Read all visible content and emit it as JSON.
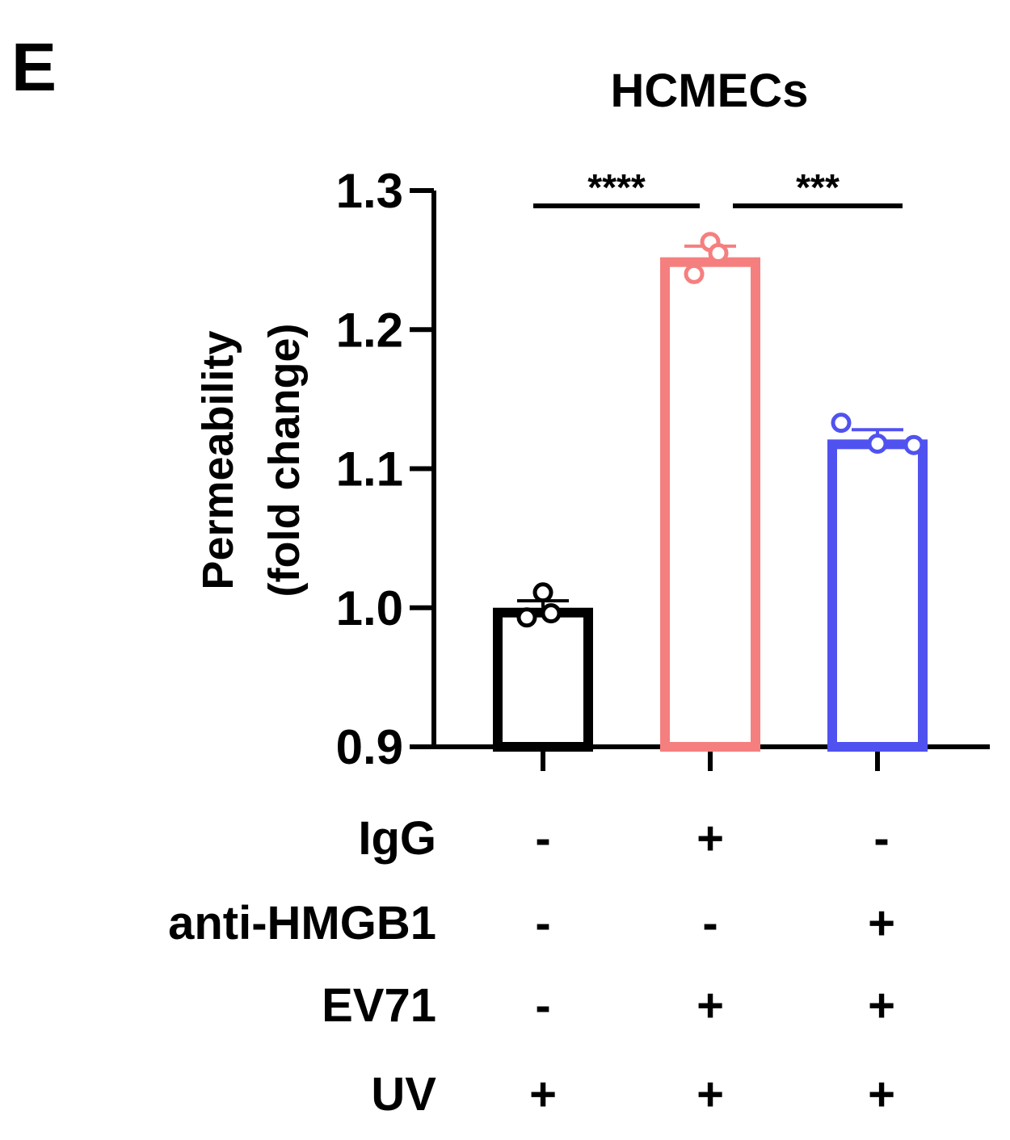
{
  "chart_data": {
    "type": "bar",
    "panel_label": "E",
    "title": "HCMECs",
    "ylabel_line1": "Permeability",
    "ylabel_line2": "(fold change)",
    "ylim": [
      0.9,
      1.3
    ],
    "yticks": [
      "0.9",
      "1.0",
      "1.1",
      "1.2",
      "1.3"
    ],
    "grid": false,
    "legend": "none",
    "bars": [
      {
        "mean": 1.0,
        "sd": 0.005,
        "points": [
          1.011,
          0.996,
          0.993
        ],
        "color": "#000000"
      },
      {
        "mean": 1.252,
        "sd": 0.008,
        "points": [
          1.263,
          1.255,
          1.24
        ],
        "color": "#f57f7f"
      },
      {
        "mean": 1.121,
        "sd": 0.007,
        "points": [
          1.133,
          1.118,
          1.117
        ],
        "color": "#5052f0"
      }
    ],
    "significance": [
      {
        "label": "****",
        "from": 0,
        "to": 1
      },
      {
        "label": "***",
        "from": 1,
        "to": 2
      }
    ],
    "conditions": [
      {
        "name": "IgG",
        "values": [
          "-",
          "+",
          "-"
        ]
      },
      {
        "name": "anti-HMGB1",
        "values": [
          "-",
          "-",
          "+"
        ]
      },
      {
        "name": "EV71",
        "values": [
          "-",
          "+",
          "+"
        ]
      },
      {
        "name": "UV",
        "values": [
          "+",
          "+",
          "+"
        ]
      }
    ]
  }
}
